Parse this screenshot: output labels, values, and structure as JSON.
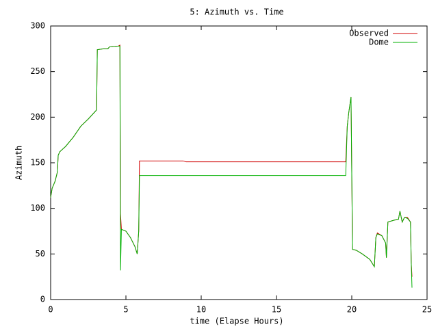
{
  "chart_data": {
    "type": "line",
    "title": "5: Azimuth vs. Time",
    "x_label": "time (Elapse Hours)",
    "y_label": "Azimuth",
    "x": [
      0,
      0.1,
      0.3,
      0.45,
      0.5,
      0.6,
      1.0,
      1.5,
      2.0,
      2.5,
      3.0,
      3.05,
      3.1,
      3.5,
      3.8,
      3.9,
      4.5,
      4.6,
      4.64,
      4.7,
      5.0,
      5.3,
      5.6,
      5.75,
      5.85,
      5.9,
      8.8,
      9.0,
      19.6,
      19.7,
      19.8,
      19.95,
      20.05,
      20.3,
      20.7,
      21.2,
      21.5,
      21.6,
      21.7,
      22.0,
      22.25,
      22.3,
      22.4,
      22.8,
      23.1,
      23.2,
      23.35,
      23.5,
      23.7,
      23.9,
      23.95,
      24.0
    ],
    "series": [
      {
        "name": "Observed",
        "color": "#d00000",
        "values": [
          112,
          122,
          130,
          140,
          158,
          162,
          168,
          178,
          190,
          198,
          207,
          208,
          274,
          275,
          275,
          277,
          278,
          279,
          94,
          77,
          75,
          68,
          58,
          50,
          75,
          152,
          152,
          151,
          151,
          190,
          205,
          222,
          55,
          54,
          50,
          44,
          36,
          68,
          73,
          70,
          62,
          46,
          85,
          87,
          88,
          97,
          85,
          90,
          90,
          85,
          40,
          25
        ]
      },
      {
        "name": "Dome",
        "color": "#00b000",
        "values": [
          112,
          122,
          130,
          140,
          158,
          162,
          168,
          178,
          190,
          198,
          207,
          208,
          274,
          275,
          275,
          277,
          278,
          278,
          32,
          77,
          75,
          68,
          58,
          50,
          75,
          136,
          136,
          136,
          136,
          190,
          205,
          222,
          55,
          54,
          50,
          44,
          36,
          68,
          72,
          70,
          62,
          46,
          85,
          87,
          88,
          97,
          85,
          90,
          89,
          85,
          40,
          13
        ]
      }
    ],
    "xlim": [
      0,
      25
    ],
    "xticks": [
      0,
      5,
      10,
      15,
      20,
      25
    ],
    "ylim": [
      0,
      300
    ],
    "yticks": [
      0,
      50,
      100,
      150,
      200,
      250,
      300
    ],
    "legend": "top-right"
  }
}
